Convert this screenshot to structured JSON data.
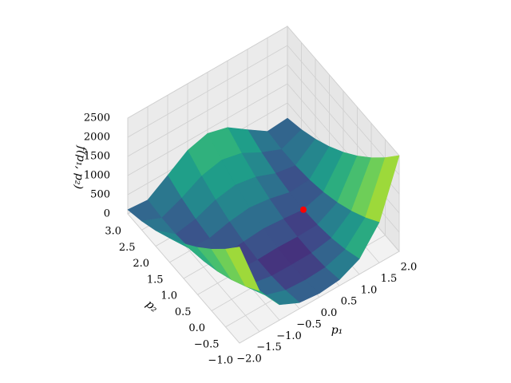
{
  "chart_data": {
    "type": "surface",
    "colormap": "viridis",
    "xlabel": "p₁",
    "ylabel": "p₂",
    "zlabel": "f(p₁, p₂)",
    "x": [
      -2,
      -1.5,
      -1,
      -0.5,
      0,
      0.5,
      1,
      1.5,
      2
    ],
    "y": [
      -1,
      -0.5,
      0,
      0.5,
      1,
      1.5,
      2,
      2.5,
      3
    ],
    "z": [
      [
        2509,
        1062.5,
        404,
        158.5,
        101,
        156.5,
        400,
        1056.5,
        2501
      ],
      [
        2034,
        762.5,
        229,
        58.5,
        26,
        56.5,
        225,
        756.5,
        2026
      ],
      [
        1609,
        512.5,
        104,
        8.5,
        1,
        6.5,
        100,
        506.5,
        1601
      ],
      [
        1234,
        312.5,
        29,
        8.5,
        26,
        6.5,
        25,
        306.5,
        1226
      ],
      [
        909,
        162.5,
        4,
        58.5,
        101,
        56.5,
        0,
        156.5,
        901
      ],
      [
        634,
        62.5,
        29,
        158.5,
        226,
        156.5,
        25,
        56.5,
        626
      ],
      [
        409,
        12.5,
        104,
        308.5,
        401,
        306.5,
        100,
        6.5,
        401
      ],
      [
        234,
        12.5,
        229,
        508.5,
        626,
        506.5,
        225,
        6.5,
        226
      ],
      [
        109,
        62.5,
        404,
        758.5,
        901,
        756.5,
        400,
        56.5,
        101
      ]
    ],
    "markers": {
      "x": [
        1
      ],
      "y": [
        1
      ],
      "z": [
        0
      ],
      "color": "#ff0000"
    },
    "xlim": [
      -2,
      2
    ],
    "ylim": [
      -1,
      3
    ],
    "zlim": [
      0,
      2500
    ],
    "xticks": [
      {
        "value": -2,
        "label": "−2.0"
      },
      {
        "value": -1.5,
        "label": "−1.5"
      },
      {
        "value": -1,
        "label": "−1.0"
      },
      {
        "value": -0.5,
        "label": "−0.5"
      },
      {
        "value": 0,
        "label": "0.0"
      },
      0.5,
      {
        "value": 1,
        "label": "1.0"
      },
      1.5,
      {
        "value": 2,
        "label": "2.0"
      }
    ],
    "yticks": [
      {
        "value": -1,
        "label": "−1.0"
      },
      {
        "value": -0.5,
        "label": "−0.5"
      },
      {
        "value": 0,
        "label": "0.0"
      },
      0.5,
      {
        "value": 1,
        "label": "1.0"
      },
      1.5,
      {
        "value": 2,
        "label": "2.0"
      },
      2.5,
      {
        "value": 3,
        "label": "3.0"
      }
    ],
    "zticks": [
      0,
      500,
      1000,
      1500,
      2000,
      2500
    ],
    "grid": true
  }
}
